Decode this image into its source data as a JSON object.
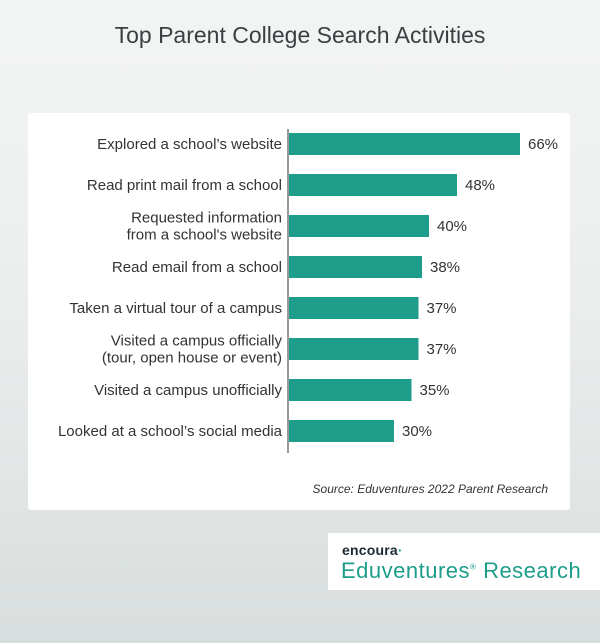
{
  "chart_data": {
    "type": "bar",
    "orientation": "horizontal",
    "title": "Top Parent College Search Activities",
    "categories": [
      [
        "Explored a school’s website"
      ],
      [
        "Read print mail from a school"
      ],
      [
        "Requested information",
        "from a school's website"
      ],
      [
        "Read email from a school"
      ],
      [
        "Taken a virtual tour of a campus"
      ],
      [
        "Visited a campus officially",
        "(tour, open house or event)"
      ],
      [
        "Visited a campus unofficially"
      ],
      [
        "Looked at a school’s social media"
      ]
    ],
    "values": [
      66,
      48,
      40,
      38,
      37,
      37,
      35,
      30
    ],
    "value_labels": [
      "66%",
      "48%",
      "40%",
      "38%",
      "37%",
      "37%",
      "35%",
      "30%"
    ],
    "xlim": [
      0,
      66
    ],
    "bar_color": "#1e9d8a",
    "grid": false,
    "source": "Source: Eduventures 2022 Parent Research"
  },
  "logo": {
    "brand": "encoura",
    "name": "Eduventures",
    "name_suffix": "Research",
    "accent_color": "#1e9d8a"
  }
}
